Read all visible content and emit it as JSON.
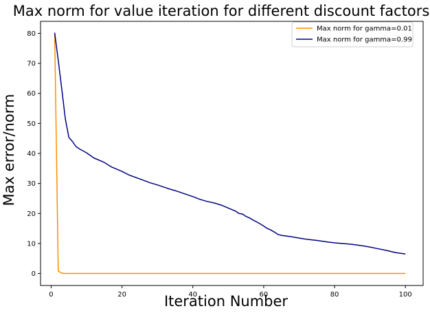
{
  "chart_data": {
    "type": "line",
    "title": "Max norm for value iteration for different discount factors",
    "xlabel": "Iteration Number",
    "ylabel": "Max error/norm",
    "xlim": [
      -3,
      105
    ],
    "ylim": [
      -4,
      84
    ],
    "xticks": [
      0,
      20,
      40,
      60,
      80,
      100
    ],
    "yticks": [
      0,
      10,
      20,
      30,
      40,
      50,
      60,
      70,
      80
    ],
    "grid": false,
    "legend_position": "top-right",
    "series": [
      {
        "name": "Max norm for gamma=0.01",
        "color": "#ff8c00",
        "x": [
          1,
          2,
          3,
          4,
          5,
          10,
          20,
          40,
          60,
          80,
          100
        ],
        "y": [
          80.2,
          0.8,
          0.1,
          0.0,
          0.0,
          0.0,
          0.0,
          0.0,
          0.0,
          0.0,
          0.0
        ]
      },
      {
        "name": "Max norm for gamma=0.99",
        "color": "#000080",
        "x": [
          1,
          2,
          3,
          4,
          5,
          6,
          7,
          8,
          10,
          12,
          15,
          17,
          20,
          22,
          25,
          28,
          30,
          33,
          35,
          38,
          40,
          42,
          44,
          46,
          48,
          50,
          52,
          53,
          54,
          55,
          56,
          57,
          58,
          59,
          60,
          61,
          62,
          63,
          64,
          65,
          68,
          70,
          72,
          75,
          78,
          80,
          85,
          88,
          90,
          92,
          95,
          97,
          100
        ],
        "y": [
          80.2,
          71.0,
          61.5,
          51.5,
          45.3,
          44.0,
          42.3,
          41.5,
          40.2,
          38.5,
          37.0,
          35.5,
          34.0,
          32.8,
          31.5,
          30.2,
          29.5,
          28.3,
          27.6,
          26.4,
          25.6,
          24.7,
          24.0,
          23.5,
          22.8,
          21.8,
          20.8,
          20.0,
          19.8,
          19.0,
          18.5,
          17.8,
          17.2,
          16.5,
          15.8,
          15.0,
          14.5,
          13.8,
          13.0,
          12.7,
          12.2,
          11.8,
          11.4,
          11.0,
          10.5,
          10.2,
          9.7,
          9.2,
          8.8,
          8.3,
          7.6,
          7.0,
          6.5
        ]
      }
    ]
  }
}
